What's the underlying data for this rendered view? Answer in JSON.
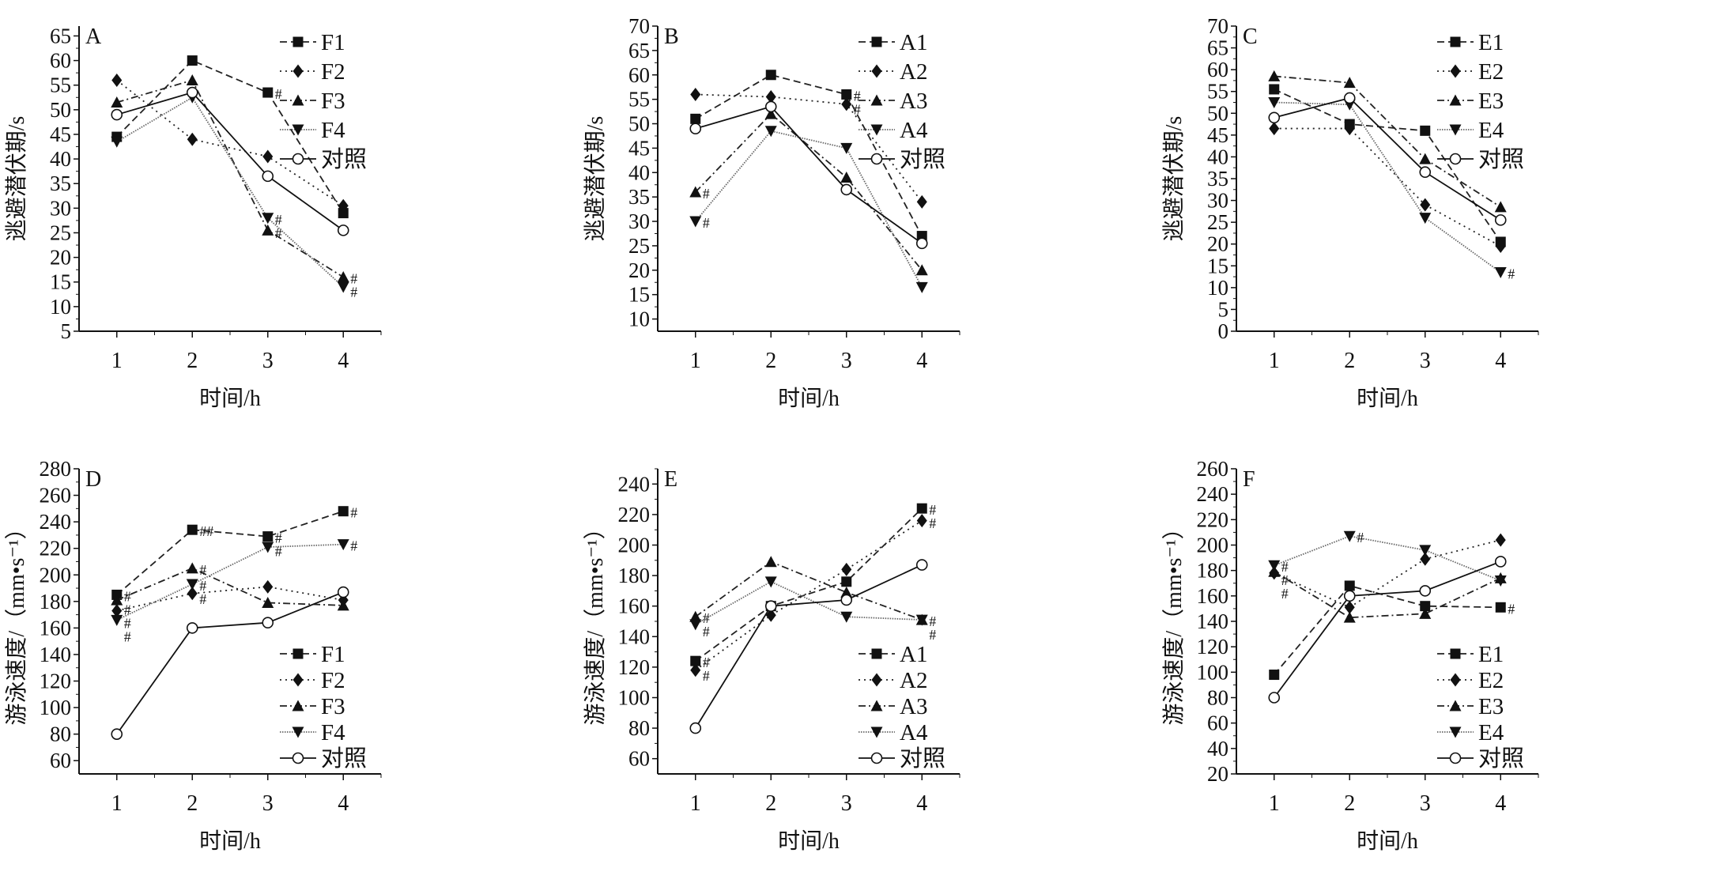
{
  "chart_data": [
    {
      "type": "line",
      "panel_label": "A",
      "xlabel": "时间/h",
      "ylabel": "逃避潜伏期/s",
      "x": [
        1,
        2,
        3,
        4
      ],
      "xlim": [
        0.5,
        4.5
      ],
      "ylim": [
        5,
        67
      ],
      "ytick_step": 5,
      "yticks_from": 5,
      "yticks_to": 65,
      "legend": "top-right",
      "series": [
        {
          "name": "F1",
          "marker": "square",
          "line": "dashed",
          "values": [
            44.5,
            60,
            53.5,
            29
          ],
          "sig": [
            "",
            "",
            "#",
            ""
          ]
        },
        {
          "name": "F2",
          "marker": "diamond",
          "line": "dotted",
          "values": [
            56,
            44,
            40.5,
            30.5
          ],
          "sig": [
            "",
            "",
            "",
            ""
          ]
        },
        {
          "name": "F3",
          "marker": "triangle-up",
          "line": "dash-dot",
          "values": [
            51.5,
            56,
            25.5,
            16
          ],
          "sig": [
            "",
            "",
            "#",
            "#"
          ]
        },
        {
          "name": "F4",
          "marker": "triangle-down",
          "line": "fine-dotted",
          "values": [
            43.5,
            52.5,
            28,
            14
          ],
          "sig": [
            "",
            "",
            "#",
            "#"
          ]
        },
        {
          "name": "对照",
          "marker": "open-circle",
          "line": "solid",
          "values": [
            49,
            53.5,
            36.5,
            25.5
          ],
          "sig": [
            "",
            "",
            "",
            ""
          ]
        }
      ]
    },
    {
      "type": "line",
      "panel_label": "B",
      "xlabel": "时间/h",
      "ylabel": "逃避潜伏期/s",
      "x": [
        1,
        2,
        3,
        4
      ],
      "xlim": [
        0.5,
        4.5
      ],
      "ylim": [
        7.5,
        70
      ],
      "ytick_step": 5,
      "yticks_from": 10,
      "yticks_to": 70,
      "legend": "top-right",
      "series": [
        {
          "name": "A1",
          "marker": "square",
          "line": "dashed",
          "values": [
            51,
            60,
            56,
            27
          ],
          "sig": [
            "",
            "",
            "#",
            ""
          ]
        },
        {
          "name": "A2",
          "marker": "diamond",
          "line": "dotted",
          "values": [
            56,
            55.5,
            54,
            34
          ],
          "sig": [
            "",
            "",
            "#",
            ""
          ]
        },
        {
          "name": "A3",
          "marker": "triangle-up",
          "line": "dash-dot",
          "values": [
            36,
            52,
            39,
            20
          ],
          "sig": [
            "#",
            "",
            "",
            ""
          ]
        },
        {
          "name": "A4",
          "marker": "triangle-down",
          "line": "fine-dotted",
          "values": [
            30,
            48.5,
            45,
            16.5
          ],
          "sig": [
            "#",
            "",
            "",
            ""
          ]
        },
        {
          "name": "对照",
          "marker": "open-circle",
          "line": "solid",
          "values": [
            49,
            53.5,
            36.5,
            25.5
          ],
          "sig": [
            "",
            "",
            "",
            ""
          ]
        }
      ]
    },
    {
      "type": "line",
      "panel_label": "C",
      "xlabel": "时间/h",
      "ylabel": "逃避潜伏期/s",
      "x": [
        1,
        2,
        3,
        4
      ],
      "xlim": [
        0.5,
        4.5
      ],
      "ylim": [
        0,
        70
      ],
      "ytick_step": 5,
      "yticks_from": 0,
      "yticks_to": 70,
      "legend": "top-right",
      "series": [
        {
          "name": "E1",
          "marker": "square",
          "line": "dashed",
          "values": [
            55.5,
            47.5,
            46,
            20.5
          ],
          "sig": [
            "",
            "",
            "",
            ""
          ]
        },
        {
          "name": "E2",
          "marker": "diamond",
          "line": "dotted",
          "values": [
            46.5,
            46.5,
            29,
            19.5
          ],
          "sig": [
            "",
            "",
            "",
            ""
          ]
        },
        {
          "name": "E3",
          "marker": "triangle-up",
          "line": "dash-dot",
          "values": [
            58.5,
            57,
            39.5,
            28.5
          ],
          "sig": [
            "",
            "",
            "",
            ""
          ]
        },
        {
          "name": "E4",
          "marker": "triangle-down",
          "line": "fine-dotted",
          "values": [
            52.5,
            52,
            26,
            13.5
          ],
          "sig": [
            "",
            "",
            "",
            "#"
          ]
        },
        {
          "name": "对照",
          "marker": "open-circle",
          "line": "solid",
          "values": [
            49,
            53.5,
            36.5,
            25.5
          ],
          "sig": [
            "",
            "",
            "",
            ""
          ]
        }
      ]
    },
    {
      "type": "line",
      "panel_label": "D",
      "xlabel": "时间/h",
      "ylabel": "游泳速度/（mm•s⁻¹）",
      "x": [
        1,
        2,
        3,
        4
      ],
      "xlim": [
        0.5,
        4.5
      ],
      "ylim": [
        50,
        280
      ],
      "ytick_step": 20,
      "yticks_from": 60,
      "yticks_to": 280,
      "legend": "bottom-right",
      "series": [
        {
          "name": "F1",
          "marker": "square",
          "line": "dashed",
          "values": [
            185,
            234,
            229,
            248
          ],
          "sig": [
            "#",
            "##",
            "#",
            "#"
          ]
        },
        {
          "name": "F2",
          "marker": "diamond",
          "line": "dotted",
          "values": [
            173,
            186,
            191,
            181
          ],
          "sig": [
            "#",
            "#",
            "",
            ""
          ]
        },
        {
          "name": "F3",
          "marker": "triangle-up",
          "line": "dash-dot",
          "values": [
            181,
            205,
            179,
            177
          ],
          "sig": [
            "#",
            "#",
            "",
            ""
          ]
        },
        {
          "name": "F4",
          "marker": "triangle-down",
          "line": "fine-dotted",
          "values": [
            166,
            193,
            221,
            223
          ],
          "sig": [
            "#",
            "#",
            "#",
            "#"
          ]
        },
        {
          "name": "对照",
          "marker": "open-circle",
          "line": "solid",
          "values": [
            80,
            160,
            164,
            187
          ],
          "sig": [
            "",
            "",
            "",
            ""
          ]
        }
      ]
    },
    {
      "type": "line",
      "panel_label": "E",
      "xlabel": "时间/h",
      "ylabel": "游泳速度/（mm•s⁻¹）",
      "x": [
        1,
        2,
        3,
        4
      ],
      "xlim": [
        0.5,
        4.5
      ],
      "ylim": [
        50,
        250
      ],
      "ytick_step": 20,
      "yticks_from": 60,
      "yticks_to": 240,
      "legend": "bottom-right",
      "series": [
        {
          "name": "A1",
          "marker": "square",
          "line": "dashed",
          "values": [
            124,
            160,
            176,
            224
          ],
          "sig": [
            "#",
            "",
            "",
            "#"
          ]
        },
        {
          "name": "A2",
          "marker": "diamond",
          "line": "dotted",
          "values": [
            118,
            154,
            184,
            216
          ],
          "sig": [
            "#",
            "",
            "",
            "#"
          ]
        },
        {
          "name": "A3",
          "marker": "triangle-up",
          "line": "dash-dot",
          "values": [
            153,
            189,
            169,
            151
          ],
          "sig": [
            "#",
            "",
            "",
            "#"
          ]
        },
        {
          "name": "A4",
          "marker": "triangle-down",
          "line": "fine-dotted",
          "values": [
            148,
            176,
            153,
            151
          ],
          "sig": [
            "#",
            "",
            "",
            "#"
          ]
        },
        {
          "name": "对照",
          "marker": "open-circle",
          "line": "solid",
          "values": [
            80,
            160,
            164,
            187
          ],
          "sig": [
            "",
            "",
            "",
            ""
          ]
        }
      ]
    },
    {
      "type": "line",
      "panel_label": "F",
      "xlabel": "时间/h",
      "ylabel": "游泳速度/（mm•s⁻¹）",
      "x": [
        1,
        2,
        3,
        4
      ],
      "xlim": [
        0.5,
        4.5
      ],
      "ylim": [
        20,
        260
      ],
      "ytick_step": 20,
      "yticks_from": 20,
      "yticks_to": 260,
      "legend": "bottom-right",
      "series": [
        {
          "name": "E1",
          "marker": "square",
          "line": "dashed",
          "values": [
            98,
            168,
            152,
            151
          ],
          "sig": [
            "",
            "",
            "",
            "#"
          ]
        },
        {
          "name": "E2",
          "marker": "diamond",
          "line": "dotted",
          "values": [
            178,
            151,
            189,
            204
          ],
          "sig": [
            "#",
            "",
            "",
            ""
          ]
        },
        {
          "name": "E3",
          "marker": "triangle-up",
          "line": "dash-dot",
          "values": [
            179,
            143,
            146,
            174
          ],
          "sig": [
            "#",
            "",
            "",
            ""
          ]
        },
        {
          "name": "E4",
          "marker": "triangle-down",
          "line": "fine-dotted",
          "values": [
            184,
            207,
            196,
            172
          ],
          "sig": [
            "#",
            "#",
            "",
            ""
          ]
        },
        {
          "name": "对照",
          "marker": "open-circle",
          "line": "solid",
          "values": [
            80,
            160,
            164,
            187
          ],
          "sig": [
            "",
            "",
            "",
            ""
          ]
        }
      ]
    }
  ]
}
